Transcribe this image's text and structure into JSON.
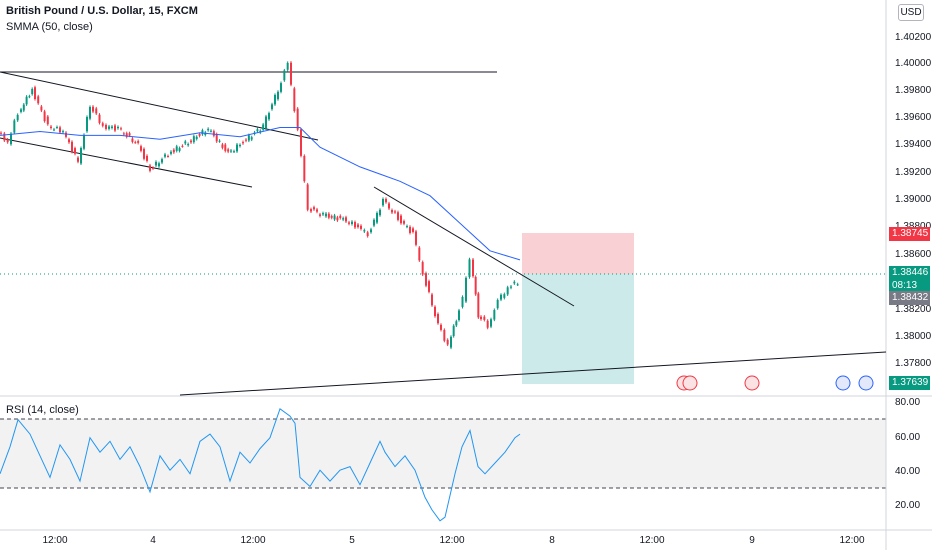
{
  "legend": {
    "title": "British Pound / U.S. Dollar, 15, FXCM",
    "smma": "SMMA (50, close)",
    "rsi": "RSI (14, close)"
  },
  "currency_button": "USD",
  "price_tags": {
    "take_profit": "1.38745",
    "current": "1.38446",
    "countdown": "08:13",
    "entry": "1.38432",
    "stop": "1.37639"
  },
  "colors": {
    "up": "#089981",
    "down": "#f23645",
    "smma": "#2962ff",
    "rsi": "#2196f3",
    "profit_zone": "#f8c8cc",
    "loss_zone": "#c4e6e6"
  },
  "chart_data": [
    {
      "type": "candlestick",
      "x_ticks": [
        "12:00",
        "4",
        "12:00",
        "5",
        "12:00",
        "8",
        "12:00",
        "9",
        "12:00"
      ],
      "y_ticks": [
        "1.40200",
        "1.40000",
        "1.39800",
        "1.39600",
        "1.39400",
        "1.39200",
        "1.39000",
        "1.38800",
        "1.38600",
        "1.38200",
        "1.38000",
        "1.37800"
      ],
      "ylim": [
        1.3757,
        1.4043
      ],
      "series": [
        {
          "name": "SMMA (50, close)",
          "points": [
            [
              0,
              1.3955
            ],
            [
              40,
              1.3958
            ],
            [
              80,
              1.3955
            ],
            [
              120,
              1.3955
            ],
            [
              160,
              1.3952
            ],
            [
              200,
              1.3957
            ],
            [
              240,
              1.3954
            ],
            [
              280,
              1.3961
            ],
            [
              300,
              1.3961
            ],
            [
              320,
              1.3946
            ],
            [
              360,
              1.3931
            ],
            [
              400,
              1.392
            ],
            [
              430,
              1.3909
            ],
            [
              460,
              1.3888
            ],
            [
              490,
              1.3867
            ],
            [
              520,
              1.386
            ]
          ]
        },
        {
          "name": "price",
          "points": [
            [
              0,
              1.3957
            ],
            [
              10,
              1.395
            ],
            [
              20,
              1.3972
            ],
            [
              34,
              1.399
            ],
            [
              50,
              1.3962
            ],
            [
              65,
              1.3958
            ],
            [
              80,
              1.3935
            ],
            [
              92,
              1.3978
            ],
            [
              105,
              1.3962
            ],
            [
              120,
              1.396
            ],
            [
              140,
              1.3948
            ],
            [
              152,
              1.3929
            ],
            [
              170,
              1.3941
            ],
            [
              190,
              1.395
            ],
            [
              210,
              1.396
            ],
            [
              230,
              1.3941
            ],
            [
              245,
              1.395
            ],
            [
              265,
              1.3962
            ],
            [
              280,
              1.399
            ],
            [
              290,
              1.401
            ],
            [
              300,
              1.3958
            ],
            [
              310,
              1.39
            ],
            [
              325,
              1.3894
            ],
            [
              345,
              1.3891
            ],
            [
              360,
              1.3885
            ],
            [
              370,
              1.388
            ],
            [
              385,
              1.3905
            ],
            [
              400,
              1.3892
            ],
            [
              415,
              1.388
            ],
            [
              425,
              1.385
            ],
            [
              440,
              1.381
            ],
            [
              450,
              1.3795
            ],
            [
              458,
              1.3815
            ],
            [
              465,
              1.383
            ],
            [
              472,
              1.3862
            ],
            [
              480,
              1.3818
            ],
            [
              490,
              1.381
            ],
            [
              500,
              1.3828
            ],
            [
              510,
              1.3839
            ],
            [
              520,
              1.3843
            ]
          ]
        }
      ],
      "annotations": {
        "take_profit": 1.38745,
        "entry": 1.38432,
        "current": 1.38446,
        "stop": 1.37639
      }
    },
    {
      "type": "line",
      "title": "RSI (14, close)",
      "y_ticks": [
        "80.00",
        "60.00",
        "40.00",
        "20.00"
      ],
      "ylim": [
        10,
        82
      ],
      "bands": [
        70,
        30
      ],
      "series": [
        {
          "name": "RSI (14, close)",
          "points": [
            [
              0,
              40
            ],
            [
              10,
              55
            ],
            [
              18,
              70
            ],
            [
              30,
              62
            ],
            [
              40,
              50
            ],
            [
              50,
              38
            ],
            [
              60,
              56
            ],
            [
              70,
              48
            ],
            [
              80,
              36
            ],
            [
              90,
              60
            ],
            [
              100,
              52
            ],
            [
              110,
              58
            ],
            [
              120,
              48
            ],
            [
              130,
              55
            ],
            [
              140,
              44
            ],
            [
              150,
              30
            ],
            [
              160,
              50
            ],
            [
              170,
              42
            ],
            [
              180,
              48
            ],
            [
              190,
              40
            ],
            [
              200,
              58
            ],
            [
              210,
              62
            ],
            [
              220,
              55
            ],
            [
              230,
              36
            ],
            [
              240,
              52
            ],
            [
              250,
              46
            ],
            [
              260,
              54
            ],
            [
              270,
              60
            ],
            [
              280,
              76
            ],
            [
              290,
              72
            ],
            [
              295,
              68
            ],
            [
              300,
              38
            ],
            [
              310,
              33
            ],
            [
              320,
              42
            ],
            [
              330,
              36
            ],
            [
              340,
              42
            ],
            [
              350,
              44
            ],
            [
              360,
              34
            ],
            [
              370,
              46
            ],
            [
              380,
              58
            ],
            [
              385,
              52
            ],
            [
              395,
              44
            ],
            [
              405,
              50
            ],
            [
              415,
              42
            ],
            [
              425,
              27
            ],
            [
              432,
              20
            ],
            [
              440,
              14
            ],
            [
              445,
              16
            ],
            [
              450,
              28
            ],
            [
              455,
              40
            ],
            [
              462,
              55
            ],
            [
              470,
              64
            ],
            [
              478,
              44
            ],
            [
              485,
              40
            ],
            [
              495,
              46
            ],
            [
              505,
              52
            ],
            [
              515,
              60
            ],
            [
              520,
              62
            ]
          ]
        }
      ]
    }
  ]
}
